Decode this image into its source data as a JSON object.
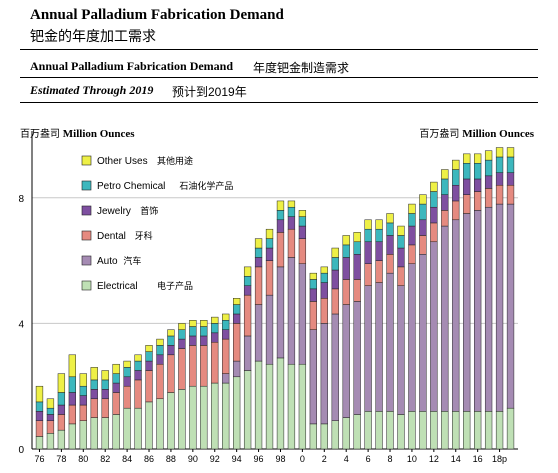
{
  "header": {
    "title_en": "Annual Palladium Fabrication Demand",
    "title_zh": "钯金的年度加工需求",
    "subtitle_en": "Annual Palladium Fabrication Demand",
    "subtitle_zh": "年度钯金制造需求",
    "estimate_en": "Estimated Through 2019",
    "estimate_zh": "预计到2019年"
  },
  "unit_left": {
    "zh": "百万盎司",
    "en": "Million Ounces"
  },
  "unit_right": {
    "zh": "百万盎司",
    "en": "Million Ounces"
  },
  "colors": {
    "Electrical": "#bfe0b5",
    "Auto": "#a58bb3",
    "Dental": "#e58a80",
    "Jewelry": "#7e4fa0",
    "Petro Chemical": "#3cb7bd",
    "Other Uses": "#eef046"
  },
  "chart_data": {
    "type": "bar",
    "stacked": true,
    "ylim": [
      0,
      10
    ],
    "yticks": [
      0,
      4,
      8
    ],
    "grid": true,
    "legend_position": "top-left",
    "legend": [
      {
        "key": "Other Uses",
        "label_en": "Other Uses",
        "label_zh": "其他用途"
      },
      {
        "key": "Petro Chemical",
        "label_en": "Petro Chemical",
        "label_zh": "石油化学产品"
      },
      {
        "key": "Jewelry",
        "label_en": "Jewelry",
        "label_zh": "首饰"
      },
      {
        "key": "Dental",
        "label_en": "Dental",
        "label_zh": "牙科"
      },
      {
        "key": "Auto",
        "label_en": "Auto",
        "label_zh": "汽车"
      },
      {
        "key": "Electrical",
        "label_en": "Electrical",
        "label_zh": "电子产品"
      }
    ],
    "categories": [
      "76",
      "77",
      "78",
      "79",
      "80",
      "81",
      "82",
      "83",
      "84",
      "85",
      "86",
      "87",
      "88",
      "89",
      "90",
      "91",
      "92",
      "93",
      "94",
      "95",
      "96",
      "97",
      "98",
      "99",
      "00",
      "01",
      "02",
      "03",
      "04",
      "05",
      "06",
      "07",
      "08",
      "09",
      "10",
      "11",
      "12",
      "13",
      "14",
      "15",
      "16",
      "17",
      "18",
      "19"
    ],
    "tick_labels": [
      "76",
      "78",
      "80",
      "82",
      "84",
      "86",
      "88",
      "90",
      "92",
      "94",
      "96",
      "98",
      "0",
      "2",
      "4",
      "6",
      "8",
      "10",
      "12",
      "14",
      "16",
      "18p"
    ],
    "series": [
      {
        "name": "Electrical",
        "values": [
          0.4,
          0.5,
          0.6,
          0.8,
          0.9,
          1.0,
          1.0,
          1.1,
          1.3,
          1.3,
          1.5,
          1.6,
          1.8,
          1.9,
          2.0,
          2.0,
          2.1,
          2.1,
          2.3,
          2.5,
          2.8,
          2.7,
          2.9,
          2.7,
          2.7,
          0.8,
          0.8,
          0.9,
          1.0,
          1.1,
          1.2,
          1.2,
          1.2,
          1.1,
          1.2,
          1.2,
          1.2,
          1.2,
          1.2,
          1.2,
          1.2,
          1.2,
          1.2,
          1.3
        ]
      },
      {
        "name": "Auto",
        "values": [
          0.0,
          0.0,
          0.0,
          0.0,
          0.0,
          0.0,
          0.0,
          0.0,
          0.0,
          0.0,
          0.0,
          0.0,
          0.0,
          0.0,
          0.0,
          0.0,
          0.0,
          0.3,
          0.5,
          1.1,
          1.8,
          2.2,
          2.9,
          3.4,
          3.2,
          3.0,
          3.2,
          3.4,
          3.6,
          3.6,
          4.0,
          4.1,
          4.4,
          4.1,
          4.7,
          5.0,
          5.4,
          5.9,
          6.1,
          6.3,
          6.4,
          6.5,
          6.6,
          6.5
        ]
      },
      {
        "name": "Dental",
        "values": [
          0.5,
          0.4,
          0.5,
          0.6,
          0.5,
          0.6,
          0.6,
          0.7,
          0.7,
          0.9,
          1.0,
          1.1,
          1.2,
          1.3,
          1.3,
          1.3,
          1.3,
          1.1,
          1.2,
          1.3,
          1.2,
          1.1,
          1.1,
          0.9,
          0.8,
          0.9,
          0.8,
          0.8,
          0.8,
          0.7,
          0.7,
          0.7,
          0.6,
          0.6,
          0.6,
          0.6,
          0.6,
          0.5,
          0.6,
          0.6,
          0.6,
          0.6,
          0.6,
          0.6
        ]
      },
      {
        "name": "Jewelry",
        "values": [
          0.3,
          0.2,
          0.3,
          0.4,
          0.3,
          0.3,
          0.3,
          0.3,
          0.3,
          0.3,
          0.3,
          0.3,
          0.3,
          0.3,
          0.3,
          0.3,
          0.3,
          0.3,
          0.3,
          0.3,
          0.3,
          0.4,
          0.4,
          0.4,
          0.4,
          0.4,
          0.5,
          0.6,
          0.7,
          0.8,
          0.7,
          0.6,
          0.6,
          0.6,
          0.6,
          0.5,
          0.5,
          0.5,
          0.5,
          0.5,
          0.4,
          0.4,
          0.4,
          0.4
        ]
      },
      {
        "name": "Petro Chemical",
        "values": [
          0.3,
          0.2,
          0.4,
          0.5,
          0.3,
          0.3,
          0.3,
          0.3,
          0.3,
          0.3,
          0.3,
          0.3,
          0.3,
          0.3,
          0.3,
          0.3,
          0.3,
          0.3,
          0.3,
          0.3,
          0.3,
          0.3,
          0.3,
          0.3,
          0.3,
          0.3,
          0.3,
          0.4,
          0.4,
          0.4,
          0.4,
          0.4,
          0.4,
          0.4,
          0.4,
          0.5,
          0.5,
          0.5,
          0.5,
          0.5,
          0.5,
          0.5,
          0.5,
          0.5
        ]
      },
      {
        "name": "Other Uses",
        "values": [
          0.5,
          0.3,
          0.6,
          0.7,
          0.4,
          0.4,
          0.3,
          0.3,
          0.2,
          0.2,
          0.2,
          0.2,
          0.2,
          0.2,
          0.2,
          0.2,
          0.2,
          0.2,
          0.2,
          0.3,
          0.3,
          0.3,
          0.3,
          0.2,
          0.2,
          0.2,
          0.2,
          0.3,
          0.3,
          0.3,
          0.3,
          0.3,
          0.3,
          0.3,
          0.3,
          0.3,
          0.3,
          0.3,
          0.3,
          0.3,
          0.3,
          0.3,
          0.3,
          0.3
        ]
      }
    ]
  }
}
